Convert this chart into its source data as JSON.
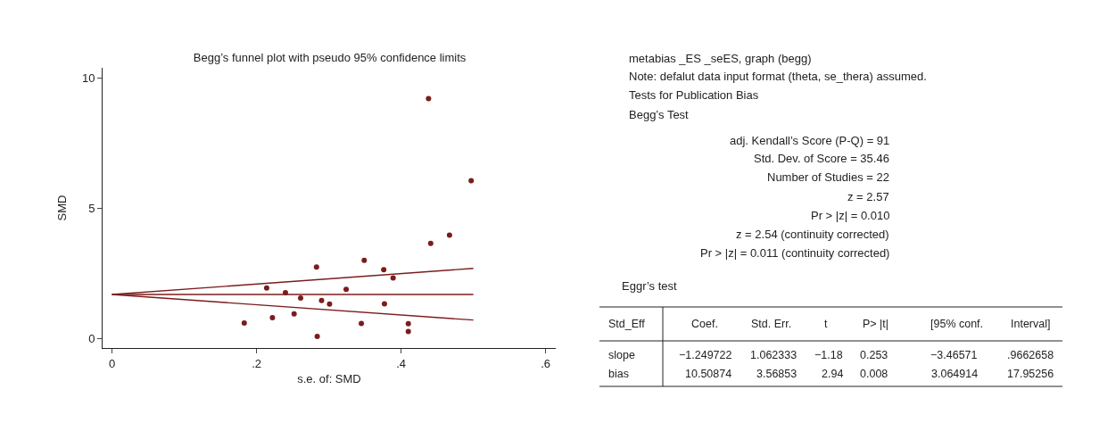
{
  "chart_data": {
    "type": "scatter",
    "title": "Begg’s funnel plot with pseudo 95% confidence limits",
    "xlabel": "s.e. of: SMD",
    "ylabel": "SMD",
    "xlim": [
      -0.013,
      0.614
    ],
    "ylim": [
      -0.35,
      10.38
    ],
    "xticks": [
      0,
      {
        "value": 0.2,
        "label": ".2"
      },
      {
        "value": 0.4,
        "label": ".4"
      },
      {
        "value": 0.6,
        "label": ".6"
      }
    ],
    "yticks": [
      0,
      5,
      10
    ],
    "series": [
      {
        "marker": "circle",
        "color": "#7b1c1c",
        "x": [
          0.183,
          0.214,
          0.222,
          0.24,
          0.252,
          0.261,
          0.283,
          0.284,
          0.29,
          0.301,
          0.324,
          0.345,
          0.349,
          0.376,
          0.377,
          0.389,
          0.41,
          0.41,
          0.438,
          0.441,
          0.467,
          0.497
        ],
        "values": [
          0.61,
          1.95,
          0.81,
          1.77,
          0.96,
          1.56,
          2.75,
          0.09,
          1.47,
          1.33,
          1.9,
          0.59,
          3.01,
          2.65,
          1.34,
          2.33,
          0.58,
          0.28,
          9.2,
          3.66,
          3.97,
          6.06
        ]
      },
      {
        "type": "line",
        "color": "#7b1c1c",
        "x": [
          0,
          0.5
        ],
        "values": [
          1.7,
          2.7
        ],
        "marker": "none"
      },
      {
        "type": "line",
        "color": "#7b1c1c",
        "x": [
          0,
          0.5
        ],
        "values": [
          1.7,
          1.7
        ],
        "marker": "none"
      },
      {
        "type": "line",
        "color": "#7b1c1c",
        "x": [
          0,
          0.5
        ],
        "values": [
          1.7,
          0.72
        ],
        "marker": "none"
      }
    ],
    "annotations": [
      "metabias _ES _seES, graph (begg)",
      "Note: defalut data input format (theta, se_thera) assumed.",
      "Tests for Publication Bias",
      "Begg’s Test",
      "adj. Kendall’s Score (P-Q) = 91",
      "Std. Dev. of Score = 35.46",
      "Number of Studies = 22",
      "z = 2.57",
      "Pr > |z| = 0.010",
      "z = 2.54 (continuity corrected)",
      "Pr > |z| = 0.011 (continuity corrected)",
      "Eggr’s test",
      "Std_Eff",
      "Coef.",
      "Std. Err.",
      "t",
      "P> |t|",
      "[95% conf.",
      "Interval]",
      "slope",
      "−1.249722",
      "1.062333",
      "−1.18",
      "0.253",
      "−3.46571",
      ".9662658",
      "bias",
      "10.50874",
      "3.56853",
      "2.94",
      "0.008",
      "3.064914",
      "17.95256"
    ]
  }
}
